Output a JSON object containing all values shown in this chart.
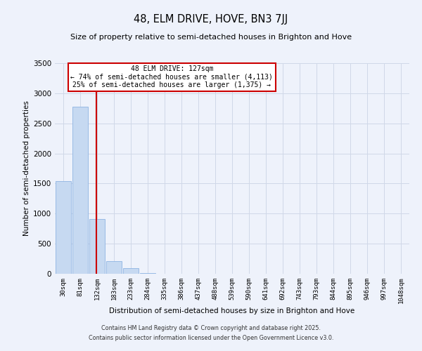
{
  "title": "48, ELM DRIVE, HOVE, BN3 7JJ",
  "subtitle": "Size of property relative to semi-detached houses in Brighton and Hove",
  "xlabel": "Distribution of semi-detached houses by size in Brighton and Hove",
  "ylabel": "Number of semi-detached properties",
  "bar_labels": [
    "30sqm",
    "81sqm",
    "132sqm",
    "183sqm",
    "233sqm",
    "284sqm",
    "335sqm",
    "386sqm",
    "437sqm",
    "488sqm",
    "539sqm",
    "590sqm",
    "641sqm",
    "692sqm",
    "743sqm",
    "793sqm",
    "844sqm",
    "895sqm",
    "946sqm",
    "997sqm",
    "1048sqm"
  ],
  "bar_values": [
    1540,
    2780,
    910,
    215,
    95,
    10,
    2,
    0,
    0,
    0,
    0,
    0,
    0,
    0,
    0,
    0,
    0,
    0,
    0,
    0,
    0
  ],
  "bar_color": "#c6d9f1",
  "bar_edge_color": "#8db3e2",
  "property_line_x": 1.94,
  "property_size": "127sqm",
  "pct_smaller": 74,
  "count_smaller": 4113,
  "pct_larger": 25,
  "count_larger": 1375,
  "annotation_line_color": "#cc0000",
  "ylim": [
    0,
    3500
  ],
  "yticks": [
    0,
    500,
    1000,
    1500,
    2000,
    2500,
    3000,
    3500
  ],
  "grid_color": "#d0d8e8",
  "background_color": "#eef2fb",
  "footer1": "Contains HM Land Registry data © Crown copyright and database right 2025.",
  "footer2": "Contains public sector information licensed under the Open Government Licence v3.0."
}
